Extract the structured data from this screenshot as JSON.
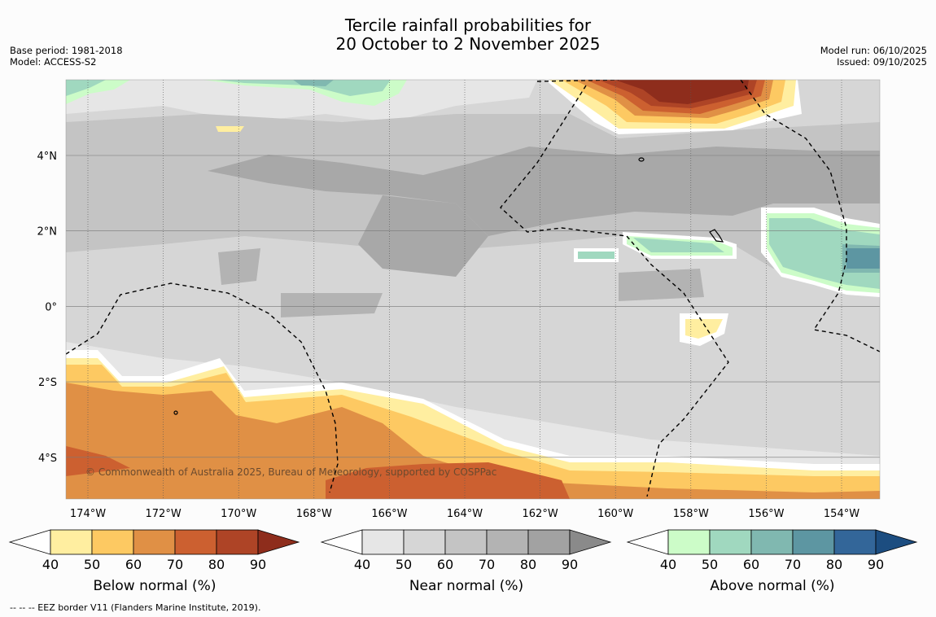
{
  "header": {
    "title_line1": "Tercile rainfall probabilities for",
    "title_line2": "20 October to 2 November 2025",
    "base_period": "Base period: 1981-2018",
    "model": "Model: ACCESS-S2",
    "model_run": "Model run: 06/10/2025",
    "issued": "Issued: 09/10/2025"
  },
  "map": {
    "lon_labels": [
      "174°W",
      "172°W",
      "170°W",
      "168°W",
      "166°W",
      "164°W",
      "162°W",
      "160°W",
      "158°W",
      "156°W",
      "154°W"
    ],
    "lat_labels": [
      "4°N",
      "2°N",
      "0°",
      "2°S",
      "4°S"
    ],
    "copyright": "© Commonwealth of Australia 2025, Bureau of Meteorology, supported by COSPPac"
  },
  "colorbars": [
    {
      "label": "Below normal (%)",
      "ticks": [
        "40",
        "50",
        "60",
        "70",
        "80",
        "90"
      ],
      "colors": [
        "#ffeea0",
        "#fdc962",
        "#e09045",
        "#cc6030",
        "#ae4426",
        "#8e2d1c"
      ]
    },
    {
      "label": "Near normal (%)",
      "ticks": [
        "40",
        "50",
        "60",
        "70",
        "80",
        "90"
      ],
      "colors": [
        "#e6e6e6",
        "#d6d6d6",
        "#c4c4c4",
        "#b3b3b3",
        "#a2a2a2",
        "#8a8a8a"
      ]
    },
    {
      "label": "Above normal (%)",
      "ticks": [
        "40",
        "50",
        "60",
        "70",
        "80",
        "90"
      ],
      "colors": [
        "#ccfcc8",
        "#a0d8bf",
        "#80b8b0",
        "#5d96a2",
        "#336699",
        "#1c4d80"
      ]
    }
  ],
  "footnote": "--  --  -- EEZ border V11 (Flanders Marine Institute, 2019)."
}
